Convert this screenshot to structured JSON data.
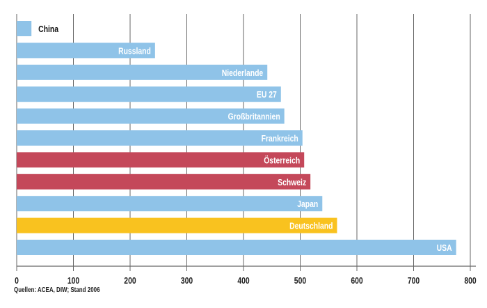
{
  "chart_data": {
    "type": "bar",
    "orientation": "horizontal",
    "categories": [
      "China",
      "Russland",
      "Niederlande",
      "EU 27",
      "Großbritannien",
      "Frankreich",
      "Österreich",
      "Schweiz",
      "Japan",
      "Deutschland",
      "USA"
    ],
    "values": [
      26,
      244,
      442,
      466,
      472,
      504,
      507,
      518,
      539,
      565,
      775
    ],
    "colors": [
      "#8fc3e8",
      "#8fc3e8",
      "#8fc3e8",
      "#8fc3e8",
      "#8fc3e8",
      "#8fc3e8",
      "#c4485a",
      "#c4485a",
      "#8fc3e8",
      "#f9c21f",
      "#8fc3e8"
    ],
    "xlim": [
      0,
      800
    ],
    "xticks": [
      "0",
      "100",
      "200",
      "300",
      "400",
      "500",
      "600",
      "700",
      "800"
    ],
    "grid": true,
    "title": "",
    "xlabel": "",
    "ylabel": ""
  },
  "source": "Quellen: ACEA, DIW; Stand 2006"
}
